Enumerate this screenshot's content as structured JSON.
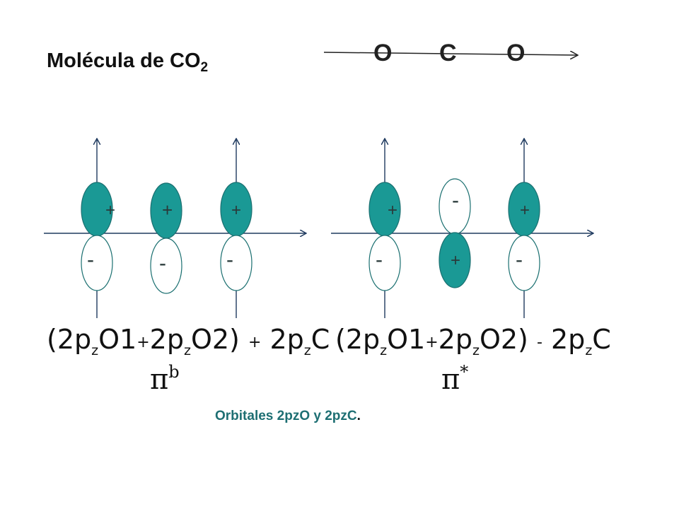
{
  "title": {
    "text": "Molécula de CO",
    "subscript": "2"
  },
  "molecule": {
    "atoms": [
      "O",
      "C",
      "O"
    ]
  },
  "diagrams": [
    {
      "id": "bonding",
      "orbitals": [
        {
          "upper_sign": "+",
          "lower_sign": "-",
          "upper_filled": true
        },
        {
          "upper_sign": "+",
          "lower_sign": "-",
          "upper_filled": true
        },
        {
          "upper_sign": "+",
          "lower_sign": "-",
          "upper_filled": true
        }
      ],
      "formula": {
        "open": "(2p",
        "sub1": "z",
        "t1": "O1",
        "op1": "+",
        "t2": "2p",
        "sub2": "z",
        "t3": "O2)",
        "op2": "+",
        "t4": "2p",
        "sub3": "z",
        "t5": "C"
      },
      "label": {
        "symbol": "π",
        "sup": "b"
      }
    },
    {
      "id": "antibonding",
      "orbitals": [
        {
          "upper_sign": "+",
          "lower_sign": "-",
          "upper_filled": true
        },
        {
          "upper_sign": "-",
          "lower_sign": "+",
          "upper_filled": false
        },
        {
          "upper_sign": "+",
          "lower_sign": "-",
          "upper_filled": true
        }
      ],
      "formula": {
        "open": "(2p",
        "sub1": "z",
        "t1": "O1",
        "op1": "+",
        "t2": "2p",
        "sub2": "z",
        "t3": "O2)",
        "op2": "-",
        "t4": "2p",
        "sub3": "z",
        "t5": "C"
      },
      "label": {
        "symbol": "π",
        "sup": "*"
      }
    }
  ],
  "caption": {
    "text": "Orbitales 2pzO y 2pzC",
    "period": "."
  },
  "colors": {
    "filled_lobe": "#1a9995",
    "lobe_outline": "#1a6f70",
    "axis": "#1f3a5f"
  }
}
